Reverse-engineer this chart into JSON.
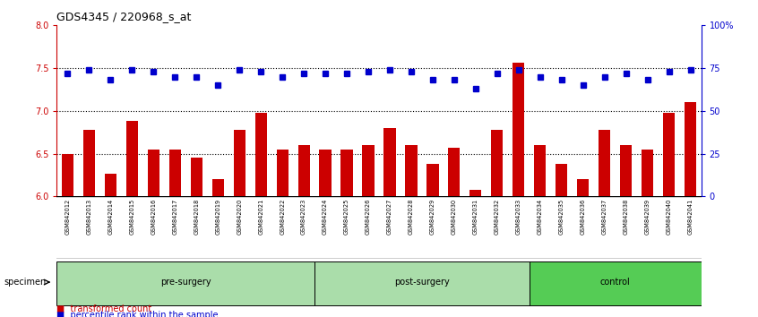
{
  "title": "GDS4345 / 220968_s_at",
  "samples": [
    "GSM842012",
    "GSM842013",
    "GSM842014",
    "GSM842015",
    "GSM842016",
    "GSM842017",
    "GSM842018",
    "GSM842019",
    "GSM842020",
    "GSM842021",
    "GSM842022",
    "GSM842023",
    "GSM842024",
    "GSM842025",
    "GSM842026",
    "GSM842027",
    "GSM842028",
    "GSM842029",
    "GSM842030",
    "GSM842031",
    "GSM842032",
    "GSM842033",
    "GSM842034",
    "GSM842035",
    "GSM842036",
    "GSM842037",
    "GSM842038",
    "GSM842039",
    "GSM842040",
    "GSM842041"
  ],
  "bar_values": [
    6.5,
    6.78,
    6.27,
    6.88,
    6.55,
    6.55,
    6.45,
    6.2,
    6.78,
    6.98,
    6.55,
    6.6,
    6.55,
    6.55,
    6.6,
    6.8,
    6.6,
    6.38,
    6.57,
    6.08,
    6.78,
    7.56,
    6.6,
    6.38,
    6.2,
    6.78,
    6.6,
    6.55,
    6.98,
    7.1
  ],
  "dot_values": [
    72,
    74,
    68,
    74,
    73,
    70,
    70,
    65,
    74,
    73,
    70,
    72,
    72,
    72,
    73,
    74,
    73,
    68,
    68,
    63,
    72,
    74,
    70,
    68,
    65,
    70,
    72,
    68,
    73,
    74
  ],
  "bar_color": "#cc0000",
  "dot_color": "#0000cc",
  "ylim_left": [
    6.0,
    8.0
  ],
  "ylim_right": [
    0,
    100
  ],
  "yticks_left": [
    6.0,
    6.5,
    7.0,
    7.5,
    8.0
  ],
  "yticks_right": [
    0,
    25,
    50,
    75,
    100
  ],
  "ytick_labels_right": [
    "0",
    "25",
    "50",
    "75",
    "100%"
  ],
  "hlines": [
    6.5,
    7.0,
    7.5
  ],
  "groups": [
    {
      "label": "pre-surgery",
      "start": 0,
      "end": 12
    },
    {
      "label": "post-surgery",
      "start": 12,
      "end": 22
    },
    {
      "label": "control",
      "start": 22,
      "end": 30
    }
  ],
  "group_colors": [
    "#aaddaa",
    "#aaddaa",
    "#55cc55"
  ],
  "specimen_label": "specimen",
  "legend_bar_label": "transformed count",
  "legend_dot_label": "percentile rank within the sample",
  "bar_width": 0.55,
  "bg_color": "#ffffff",
  "tick_area_color": "#c8c8c8"
}
